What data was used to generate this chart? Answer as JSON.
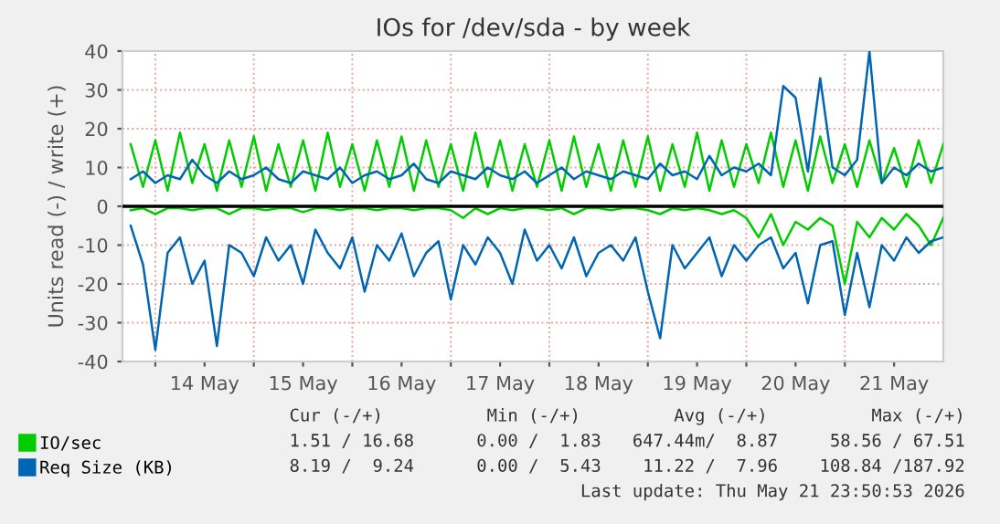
{
  "chart_data": {
    "type": "line",
    "title": "IOs for /dev/sda - by week",
    "ylabel": "Units read (-) / write (+)",
    "x": [
      "2026-05-13T18:00",
      "2026-05-13T21:00",
      "2026-05-14T00:00",
      "2026-05-14T03:00",
      "2026-05-14T06:00",
      "2026-05-14T09:00",
      "2026-05-14T12:00",
      "2026-05-14T15:00",
      "2026-05-14T18:00",
      "2026-05-14T21:00",
      "2026-05-15T00:00",
      "2026-05-15T03:00",
      "2026-05-15T06:00",
      "2026-05-15T09:00",
      "2026-05-15T12:00",
      "2026-05-15T15:00",
      "2026-05-15T18:00",
      "2026-05-15T21:00",
      "2026-05-16T00:00",
      "2026-05-16T03:00",
      "2026-05-16T06:00",
      "2026-05-16T09:00",
      "2026-05-16T12:00",
      "2026-05-16T15:00",
      "2026-05-16T18:00",
      "2026-05-16T21:00",
      "2026-05-17T00:00",
      "2026-05-17T03:00",
      "2026-05-17T06:00",
      "2026-05-17T09:00",
      "2026-05-17T12:00",
      "2026-05-17T15:00",
      "2026-05-17T18:00",
      "2026-05-17T21:00",
      "2026-05-18T00:00",
      "2026-05-18T03:00",
      "2026-05-18T06:00",
      "2026-05-18T09:00",
      "2026-05-18T12:00",
      "2026-05-18T15:00",
      "2026-05-18T18:00",
      "2026-05-18T21:00",
      "2026-05-19T00:00",
      "2026-05-19T03:00",
      "2026-05-19T06:00",
      "2026-05-19T09:00",
      "2026-05-19T12:00",
      "2026-05-19T15:00",
      "2026-05-19T18:00",
      "2026-05-19T21:00",
      "2026-05-20T00:00",
      "2026-05-20T03:00",
      "2026-05-20T06:00",
      "2026-05-20T09:00",
      "2026-05-20T12:00",
      "2026-05-20T15:00",
      "2026-05-20T18:00",
      "2026-05-20T21:00",
      "2026-05-21T00:00",
      "2026-05-21T03:00",
      "2026-05-21T06:00",
      "2026-05-21T09:00",
      "2026-05-21T12:00",
      "2026-05-21T15:00",
      "2026-05-21T18:00",
      "2026-05-21T21:00",
      "2026-05-22T00:00"
    ],
    "series": [
      {
        "name": "IO/sec",
        "color": "#00cc00",
        "values": [
          16,
          5,
          17,
          4,
          19,
          6,
          16,
          4,
          17,
          5,
          18,
          4,
          16,
          5,
          17,
          4,
          19,
          5,
          16,
          4,
          17,
          5,
          18,
          4,
          17,
          5,
          16,
          4,
          19,
          5,
          17,
          4,
          16,
          5,
          17,
          4,
          18,
          5,
          16,
          4,
          17,
          5,
          18,
          4,
          16,
          5,
          19,
          4,
          17,
          5,
          16,
          6,
          19,
          5,
          17,
          4,
          18,
          6,
          16,
          5,
          17,
          6,
          15,
          5,
          17,
          6,
          16
        ]
      },
      {
        "color": "#00cc00",
        "values": [
          -1,
          -0.5,
          -2,
          -0.5,
          -0.5,
          -1,
          -0.5,
          -0.5,
          -2,
          -0.5,
          -0.5,
          -1,
          -0.5,
          -0.5,
          -1.5,
          -0.5,
          -0.5,
          -1,
          -0.5,
          -0.5,
          -1,
          -0.5,
          -0.5,
          -1,
          -0.5,
          -0.5,
          -1,
          -3,
          -0.5,
          -2,
          -0.5,
          -1,
          -0.5,
          -0.5,
          -1,
          -0.5,
          -2,
          -0.5,
          -0.5,
          -1,
          -0.5,
          -0.5,
          -1,
          -2,
          -0.5,
          -1,
          -0.5,
          -1,
          -2,
          -1,
          -3,
          -8,
          -2,
          -10,
          -4,
          -6,
          -3,
          -5,
          -20,
          -4,
          -8,
          -3,
          -6,
          -2,
          -5,
          -10,
          -3
        ]
      },
      {
        "name": "Req Size (KB)",
        "color": "#0066b3",
        "values": [
          7,
          9,
          6,
          8,
          7,
          12,
          8,
          6,
          9,
          7,
          8,
          10,
          7,
          6,
          9,
          8,
          7,
          10,
          6,
          8,
          9,
          7,
          8,
          11,
          7,
          6,
          9,
          8,
          7,
          10,
          8,
          7,
          9,
          6,
          8,
          10,
          7,
          9,
          8,
          7,
          9,
          8,
          7,
          11,
          8,
          9,
          7,
          13,
          8,
          10,
          9,
          11,
          8,
          31,
          28,
          9,
          33,
          10,
          8,
          12,
          40,
          6,
          10,
          8,
          11,
          9,
          10
        ]
      },
      {
        "color": "#0066b3",
        "values": [
          -5,
          -15,
          -37,
          -12,
          -8,
          -20,
          -14,
          -36,
          -10,
          -12,
          -18,
          -8,
          -14,
          -10,
          -20,
          -6,
          -12,
          -16,
          -8,
          -22,
          -10,
          -14,
          -7,
          -18,
          -12,
          -9,
          -24,
          -10,
          -15,
          -8,
          -12,
          -20,
          -6,
          -14,
          -10,
          -16,
          -8,
          -18,
          -12,
          -10,
          -14,
          -8,
          -22,
          -34,
          -10,
          -16,
          -12,
          -8,
          -18,
          -10,
          -14,
          -10,
          -8,
          -16,
          -12,
          -25,
          -10,
          -9,
          -28,
          -12,
          -26,
          -10,
          -14,
          -8,
          -12,
          -9,
          -8
        ]
      }
    ],
    "xlim": [
      "2026-05-13T16:00",
      "2026-05-22T00:00"
    ],
    "xticks": [
      {
        "value": "2026-05-14",
        "label": null
      },
      {
        "value": "2026-05-15",
        "label": null
      },
      {
        "value": "2026-05-16",
        "label": null
      },
      {
        "value": "2026-05-17",
        "label": null
      },
      {
        "value": "2026-05-18",
        "label": null
      },
      {
        "value": "2026-05-19",
        "label": null
      },
      {
        "value": "2026-05-20",
        "label": null
      },
      {
        "value": "2026-05-21",
        "label": null
      },
      {
        "value": "2026-05-14T12:00",
        "label": "14 May"
      },
      {
        "value": "2026-05-15T12:00",
        "label": "15 May"
      },
      {
        "value": "2026-05-16T12:00",
        "label": "16 May"
      },
      {
        "value": "2026-05-17T12:00",
        "label": "17 May"
      },
      {
        "value": "2026-05-18T12:00",
        "label": "18 May"
      },
      {
        "value": "2026-05-19T12:00",
        "label": "19 May"
      },
      {
        "value": "2026-05-20T12:00",
        "label": "20 May"
      },
      {
        "value": "2026-05-21T12:00",
        "label": "21 May"
      }
    ],
    "ylim": [
      -40,
      40
    ],
    "yticks": [
      -40,
      -30,
      -20,
      -10,
      0,
      10,
      20,
      30,
      40
    ],
    "ref_lines": [
      {
        "axis": "y",
        "value": 0,
        "color": "#000000"
      }
    ],
    "grid": true,
    "legend": "bottom left",
    "line_style": "solid",
    "marker": "none",
    "annotations": [
      "Cur (-/+)          Min (-/+)         Avg (-/+)          Max (-/+)",
      "1.51 / 16.68      0.00 /  1.83   647.44m/  8.87     58.56 / 67.51",
      "8.19 /  9.24      0.00 /  5.43    11.22 /  7.96    108.84 /187.92",
      "Last update: Thu May 21 23:50:53 2026"
    ]
  }
}
